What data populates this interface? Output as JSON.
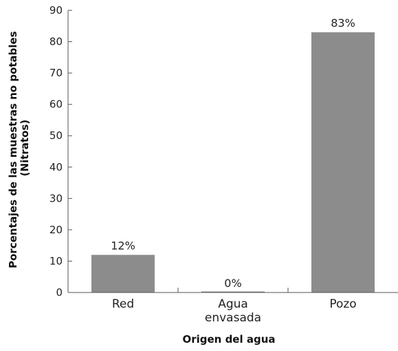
{
  "chart_data": {
    "type": "bar",
    "categories": [
      "Red",
      "Agua envasada",
      "Pozo"
    ],
    "category_lines": [
      [
        "Red"
      ],
      [
        "Agua",
        "envasada"
      ],
      [
        "Pozo"
      ]
    ],
    "values": [
      12,
      0,
      83
    ],
    "value_labels": [
      "12%",
      "0%",
      "83%"
    ],
    "xlabel": "Origen del agua",
    "ylabel_lines": [
      "Porcentajes de las muestras no potables",
      "(Nitratos)"
    ],
    "ylim": [
      0,
      90
    ],
    "yticks": [
      0,
      10,
      20,
      30,
      40,
      50,
      60,
      70,
      80,
      90
    ],
    "grid": false,
    "bar_color": "#8c8c8c"
  }
}
